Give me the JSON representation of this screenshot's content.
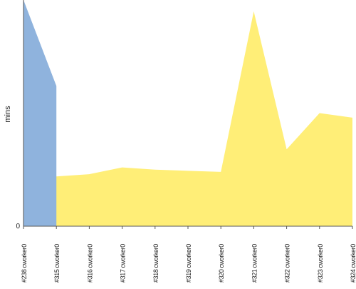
{
  "chart_data": {
    "type": "area",
    "title": "",
    "xlabel": "",
    "ylabel": "mins",
    "y_tick_labels": [
      "0"
    ],
    "ylim": [
      0,
      100
    ],
    "grid": false,
    "legend": "none",
    "categories": [
      "#238 cworker0",
      "#315 cworker0",
      "#316 cworker0",
      "#317 cworker0",
      "#318 cworker0",
      "#319 cworker0",
      "#320 cworker0",
      "#321 cworker0",
      "#322 cworker0",
      "#323 cworker0",
      "#324 cworker0"
    ],
    "series": [
      {
        "color": "#ffee77",
        "values": [
          95,
          22,
          23,
          26,
          25,
          24.5,
          24,
          95,
          34,
          50,
          48
        ]
      }
    ],
    "highlight": {
      "color": "#8fb3dd",
      "category_index": 0,
      "from_value": 100,
      "to_value": 62
    }
  }
}
